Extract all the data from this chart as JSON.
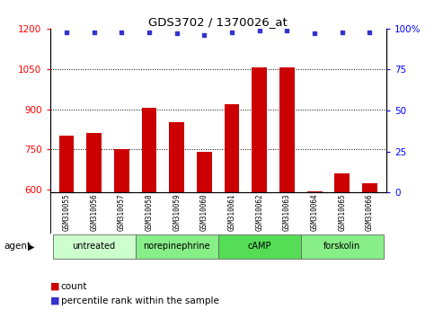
{
  "title": "GDS3702 / 1370026_at",
  "samples": [
    "GSM310055",
    "GSM310056",
    "GSM310057",
    "GSM310058",
    "GSM310059",
    "GSM310060",
    "GSM310061",
    "GSM310062",
    "GSM310063",
    "GSM310064",
    "GSM310065",
    "GSM310066"
  ],
  "count_values": [
    800,
    810,
    750,
    905,
    850,
    740,
    920,
    1055,
    1055,
    595,
    660,
    625
  ],
  "percentile_values": [
    98,
    98,
    98,
    98,
    97,
    96,
    98,
    99,
    99,
    97,
    98,
    98
  ],
  "bar_color": "#cc0000",
  "dot_color": "#3333cc",
  "ylim_left": [
    590,
    1200
  ],
  "ylim_right": [
    0,
    100
  ],
  "yticks_left": [
    600,
    750,
    900,
    1050,
    1200
  ],
  "yticks_right": [
    0,
    25,
    50,
    75,
    100
  ],
  "ytick_right_labels": [
    "0",
    "25",
    "50",
    "75",
    "100%"
  ],
  "grid_lines": [
    750,
    900,
    1050
  ],
  "groups": [
    {
      "label": "untreated",
      "start": 0,
      "end": 2,
      "color": "#ccffcc"
    },
    {
      "label": "norepinephrine",
      "start": 3,
      "end": 5,
      "color": "#88ee88"
    },
    {
      "label": "cAMP",
      "start": 6,
      "end": 8,
      "color": "#55dd55"
    },
    {
      "label": "forskolin",
      "start": 9,
      "end": 11,
      "color": "#88ee88"
    }
  ],
  "sample_area_color": "#cccccc",
  "background_color": "#ffffff",
  "agent_label": "agent"
}
